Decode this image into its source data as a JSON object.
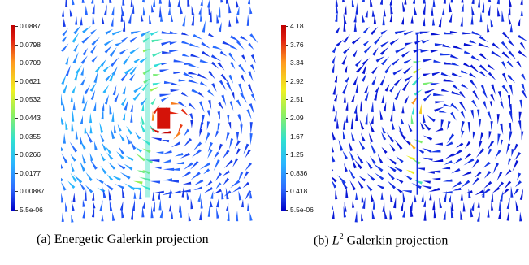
{
  "panels": [
    {
      "caption_tag": "(a)",
      "caption_text": "Energetic Galerkin projection",
      "colorbar_ticks": [
        "0.0887",
        "0.0798",
        "0.0709",
        "0.0621",
        "0.0532",
        "0.0443",
        "0.0355",
        "0.0266",
        "0.0177",
        "0.00887",
        "5.5e-06"
      ]
    },
    {
      "caption_tag": "(b)",
      "caption_math": "L",
      "caption_sup": "2",
      "caption_text": "Galerkin projection",
      "colorbar_ticks": [
        "4.18",
        "3.76",
        "3.34",
        "2.92",
        "2.51",
        "2.09",
        "1.67",
        "1.25",
        "0.836",
        "0.418",
        "5.5e-06"
      ]
    }
  ]
}
